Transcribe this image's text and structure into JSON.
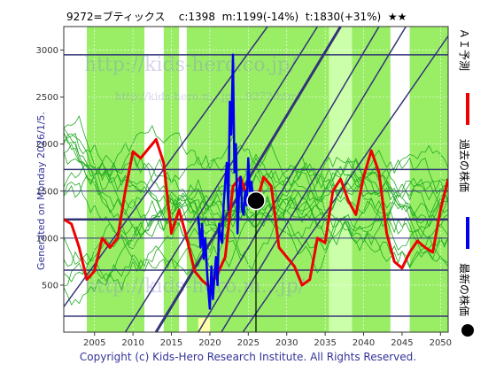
{
  "header": {
    "text": "9272=ブティックス    c:1398  m:1199(-14%)  t:1830(+31%)  ★★"
  },
  "side_label": "Generated on Monday 2026/1/5.",
  "footer": "Copyright (c) Kids-Hero Research Institute. All Rights Reserved.",
  "watermarks": {
    "top": "http://kids-hero.co.jp/",
    "mid": "http://kids-hero.m...jp/...9272.html",
    "bottom": "http://kids-hero.m...jp/"
  },
  "legend": {
    "items": [
      {
        "label": "ＡＩ予測",
        "color": "#ee0000"
      },
      {
        "label": "過去の株価",
        "color": "#0000ee"
      },
      {
        "label": "最新の株価",
        "color": "#000000"
      }
    ]
  },
  "chart_data": {
    "type": "line",
    "xlim": [
      2001,
      2051
    ],
    "ylim": [
      0,
      3250
    ],
    "x_ticks": [
      2005,
      2010,
      2015,
      2020,
      2025,
      2030,
      2035,
      2040,
      2045,
      2050
    ],
    "y_ticks": [
      500,
      1000,
      1500,
      2000,
      2500,
      3000
    ],
    "grid": true,
    "colors": {
      "background_band": "#99ee66",
      "light_band": "#ccffaa",
      "white_band": "#ffffff",
      "yellow_band": "#ffffaa",
      "green_line": "#22aa22",
      "navy_line": "#333377",
      "prediction": "#ee0000",
      "history": "#0000ee",
      "latest": "#000000"
    },
    "bands": [
      {
        "x0": 2001,
        "x1": 2004,
        "color": "white"
      },
      {
        "x0": 2004,
        "x1": 2011.5,
        "color": "green"
      },
      {
        "x0": 2011.5,
        "x1": 2014,
        "color": "white"
      },
      {
        "x0": 2014,
        "x1": 2016,
        "color": "green"
      },
      {
        "x0": 2016,
        "x1": 2017,
        "color": "white"
      },
      {
        "x0": 2017,
        "x1": 2035.5,
        "color": "green"
      },
      {
        "x0": 2035.5,
        "x1": 2038.5,
        "color": "light"
      },
      {
        "x0": 2038.5,
        "x1": 2043.5,
        "color": "green"
      },
      {
        "x0": 2043.5,
        "x1": 2046,
        "color": "white"
      },
      {
        "x0": 2046,
        "x1": 2051,
        "color": "green"
      }
    ],
    "yellow_bands": [
      {
        "x0": 2018.5,
        "x1": 2020,
        "ymin": 0,
        "ymax": 150
      }
    ],
    "horizontal_levels": [
      {
        "y": 2950,
        "width": 1.5
      },
      {
        "y": 1730,
        "width": 1.5
      },
      {
        "y": 1500,
        "width": 1
      },
      {
        "y": 1199,
        "width": 2.5
      },
      {
        "y": 1000,
        "width": 1
      },
      {
        "y": 660,
        "width": 1.5
      },
      {
        "y": 170,
        "width": 1.5
      }
    ],
    "diagonal_lines": [
      {
        "x1": 2001,
        "y1": 270,
        "x2": 2027.5,
        "y2": 3250,
        "width": 1.5
      },
      {
        "x1": 2009,
        "y1": 0,
        "x2": 2034,
        "y2": 3250,
        "width": 1.5
      },
      {
        "x1": 2013,
        "y1": 0,
        "x2": 2037,
        "y2": 3250,
        "width": 3
      },
      {
        "x1": 2018.5,
        "y1": 0,
        "x2": 2042,
        "y2": 3250,
        "width": 1.5
      },
      {
        "x1": 2021.5,
        "y1": 0,
        "x2": 2045.5,
        "y2": 3250,
        "width": 1.5
      },
      {
        "x1": 2024.3,
        "y1": 0,
        "x2": 2051,
        "y2": 3150,
        "width": 1.5
      }
    ],
    "vertical_marker_x": 2026.0,
    "latest_point": {
      "x": 2026.0,
      "y": 1398
    },
    "series": [
      {
        "name": "ＡＩ予測",
        "x": [
          2001,
          2002,
          2003,
          2004,
          2005,
          2006,
          2007,
          2008,
          2009,
          2010,
          2011,
          2012,
          2013,
          2014,
          2015,
          2016,
          2017,
          2018,
          2019,
          2020,
          2021,
          2022,
          2023,
          2024,
          2025,
          2026,
          2027,
          2028,
          2029,
          2030,
          2031,
          2032,
          2033,
          2034,
          2035,
          2036,
          2037,
          2038,
          2039,
          2040,
          2041,
          2042,
          2043,
          2044,
          2045,
          2046,
          2047,
          2048,
          2049,
          2050,
          2051
        ],
        "values": [
          1200,
          1150,
          900,
          560,
          650,
          1000,
          900,
          1000,
          1500,
          1920,
          1850,
          1950,
          2050,
          1800,
          1050,
          1300,
          1000,
          650,
          550,
          480,
          620,
          800,
          1550,
          1650,
          1400,
          1350,
          1650,
          1550,
          900,
          800,
          700,
          500,
          560,
          1000,
          950,
          1500,
          1630,
          1400,
          1250,
          1650,
          1930,
          1700,
          1050,
          750,
          680,
          850,
          970,
          900,
          850,
          1300,
          1630
        ]
      },
      {
        "name": "過去の株価",
        "x": [
          2018.5,
          2018.8,
          2019.0,
          2019.2,
          2019.4,
          2019.6,
          2019.8,
          2020.0,
          2020.2,
          2020.4,
          2020.6,
          2020.8,
          2021.0,
          2021.2,
          2021.4,
          2021.6,
          2021.8,
          2022.0,
          2022.2,
          2022.4,
          2022.6,
          2022.8,
          2023.0,
          2023.2,
          2023.4,
          2023.6,
          2023.8,
          2024.0,
          2024.2,
          2024.4,
          2024.6,
          2024.8,
          2025.0,
          2025.2,
          2025.4,
          2025.6
        ],
        "values": [
          1230,
          900,
          1150,
          780,
          1000,
          700,
          450,
          250,
          700,
          350,
          600,
          800,
          500,
          1150,
          1000,
          950,
          1350,
          1600,
          1800,
          1300,
          2450,
          2100,
          2950,
          1700,
          2000,
          1050,
          1500,
          1650,
          1300,
          1250,
          1500,
          1350,
          1850,
          1500,
          1600,
          1450
        ]
      }
    ]
  }
}
